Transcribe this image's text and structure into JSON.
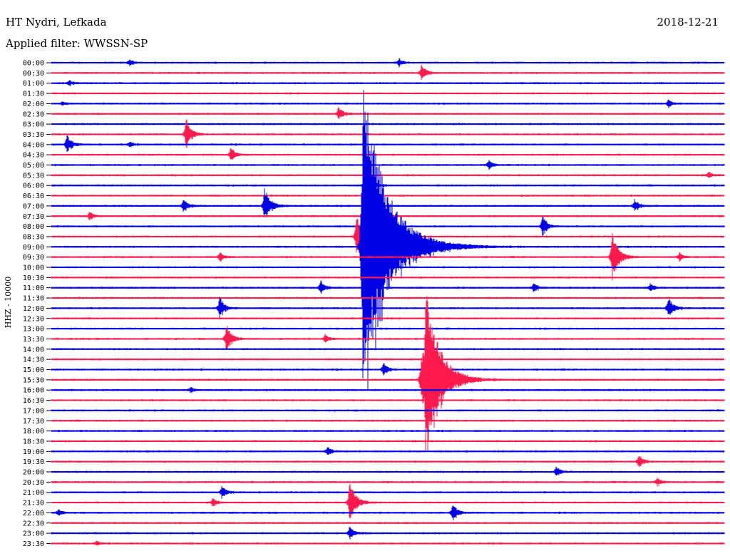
{
  "header": {
    "station": "HT Nydri, Lefkada",
    "date": "2018-12-21",
    "filter_label": "Applied filter: WWSSN-SP"
  },
  "colors": {
    "blue_trace": "#0000e6",
    "red_trace": "#ff1a4d",
    "text": "#000000",
    "background": "#ffffff"
  },
  "chart_data": {
    "type": "line",
    "title": "HT Nydri, Lefkada",
    "ylabel": "HHZ - 10000",
    "xlabel": "",
    "grid": false,
    "row_interval_minutes": 30,
    "row_labels": [
      "00:00",
      "00:30",
      "01:00",
      "01:30",
      "02:00",
      "02:30",
      "03:00",
      "03:30",
      "04:00",
      "04:30",
      "05:00",
      "05:30",
      "06:00",
      "06:30",
      "07:00",
      "07:30",
      "08:00",
      "08:30",
      "09:00",
      "09:30",
      "10:00",
      "10:30",
      "11:00",
      "11:30",
      "12:00",
      "12:30",
      "13:00",
      "13:30",
      "14:00",
      "14:30",
      "15:00",
      "15:30",
      "16:00",
      "16:30",
      "17:00",
      "17:30",
      "18:00",
      "18:30",
      "19:00",
      "19:30",
      "20:00",
      "20:30",
      "21:00",
      "21:30",
      "22:00",
      "22:30",
      "23:00",
      "23:30"
    ],
    "trace_colors_cycle": [
      "blue",
      "red"
    ],
    "events": [
      {
        "row": 0,
        "minute": 3.5,
        "amplitude": 5
      },
      {
        "row": 0,
        "minute": 15.5,
        "amplitude": 6
      },
      {
        "row": 1,
        "minute": 16.5,
        "amplitude": 13
      },
      {
        "row": 2,
        "minute": 0.8,
        "amplitude": 4
      },
      {
        "row": 4,
        "minute": 0.5,
        "amplitude": 3
      },
      {
        "row": 4,
        "minute": 27.5,
        "amplitude": 5
      },
      {
        "row": 5,
        "minute": 12.8,
        "amplitude": 11
      },
      {
        "row": 7,
        "minute": 6.0,
        "amplitude": 24
      },
      {
        "row": 8,
        "minute": 0.7,
        "amplitude": 15
      },
      {
        "row": 8,
        "minute": 3.5,
        "amplitude": 4
      },
      {
        "row": 9,
        "minute": 8.0,
        "amplitude": 12
      },
      {
        "row": 10,
        "minute": 19.5,
        "amplitude": 7
      },
      {
        "row": 11,
        "minute": 29.3,
        "amplitude": 5
      },
      {
        "row": 12,
        "minute": 14.0,
        "amplitude": 26
      },
      {
        "row": 14,
        "minute": 5.9,
        "amplitude": 11
      },
      {
        "row": 14,
        "minute": 9.5,
        "amplitude": 27
      },
      {
        "row": 14,
        "minute": 26.0,
        "amplitude": 10
      },
      {
        "row": 15,
        "minute": 1.7,
        "amplitude": 7
      },
      {
        "row": 16,
        "minute": 21.9,
        "amplitude": 16
      },
      {
        "row": 17,
        "minute": 13.6,
        "amplitude": 30
      },
      {
        "row": 18,
        "minute": 13.8,
        "amplitude": 34
      },
      {
        "row": 18,
        "minute": 13.9,
        "amplitude": 228
      },
      {
        "row": 19,
        "minute": 7.5,
        "amplitude": 7
      },
      {
        "row": 19,
        "minute": 25.0,
        "amplitude": 34
      },
      {
        "row": 19,
        "minute": 28.0,
        "amplitude": 7
      },
      {
        "row": 22,
        "minute": 12.0,
        "amplitude": 11
      },
      {
        "row": 22,
        "minute": 21.5,
        "amplitude": 8
      },
      {
        "row": 22,
        "minute": 26.7,
        "amplitude": 6
      },
      {
        "row": 24,
        "minute": 7.5,
        "amplitude": 17
      },
      {
        "row": 24,
        "minute": 27.5,
        "amplitude": 17
      },
      {
        "row": 27,
        "minute": 7.8,
        "amplitude": 22
      },
      {
        "row": 27,
        "minute": 12.2,
        "amplitude": 6
      },
      {
        "row": 30,
        "minute": 14.8,
        "amplitude": 10
      },
      {
        "row": 31,
        "minute": 16.5,
        "amplitude": 40
      },
      {
        "row": 31,
        "minute": 16.7,
        "amplitude": 120
      },
      {
        "row": 32,
        "minute": 6.2,
        "amplitude": 4
      },
      {
        "row": 38,
        "minute": 12.3,
        "amplitude": 7
      },
      {
        "row": 39,
        "minute": 26.2,
        "amplitude": 11
      },
      {
        "row": 40,
        "minute": 22.5,
        "amplitude": 8
      },
      {
        "row": 41,
        "minute": 27.0,
        "amplitude": 7
      },
      {
        "row": 42,
        "minute": 7.6,
        "amplitude": 11
      },
      {
        "row": 43,
        "minute": 13.3,
        "amplitude": 31
      },
      {
        "row": 43,
        "minute": 7.2,
        "amplitude": 6
      },
      {
        "row": 44,
        "minute": 0.3,
        "amplitude": 5
      },
      {
        "row": 44,
        "minute": 17.9,
        "amplitude": 14
      },
      {
        "row": 46,
        "minute": 13.3,
        "amplitude": 11
      },
      {
        "row": 47,
        "minute": 2.0,
        "amplitude": 4
      }
    ]
  }
}
